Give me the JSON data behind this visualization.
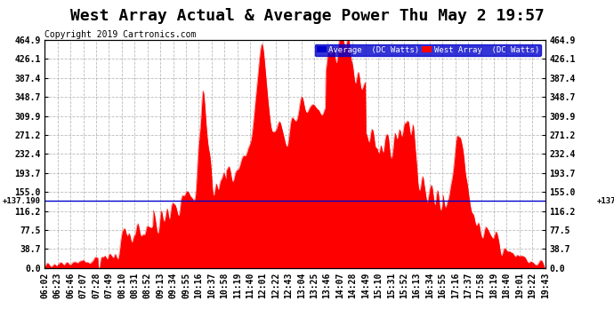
{
  "title": "West Array Actual & Average Power Thu May 2 19:57",
  "copyright": "Copyright 2019 Cartronics.com",
  "legend_avg": "Average  (DC Watts)",
  "legend_west": "West Array  (DC Watts)",
  "average_value": 137.19,
  "ymin": 0.0,
  "ymax": 464.9,
  "yticks": [
    0.0,
    38.7,
    77.5,
    116.2,
    155.0,
    193.7,
    232.4,
    271.2,
    309.9,
    348.7,
    387.4,
    426.1,
    464.9
  ],
  "plot_bg_color": "#ffffff",
  "red_color": "#ff0000",
  "avg_line_color": "#0000cc",
  "grid_color": "#aaaaaa",
  "xtick_labels": [
    "06:02",
    "06:23",
    "06:46",
    "07:07",
    "07:28",
    "07:49",
    "08:10",
    "08:31",
    "08:52",
    "09:13",
    "09:34",
    "09:55",
    "10:16",
    "10:37",
    "10:58",
    "11:19",
    "11:40",
    "12:01",
    "12:22",
    "12:43",
    "13:04",
    "13:25",
    "13:46",
    "14:07",
    "14:28",
    "14:49",
    "15:10",
    "15:31",
    "15:52",
    "16:13",
    "16:34",
    "16:55",
    "17:16",
    "17:37",
    "17:58",
    "18:19",
    "18:40",
    "19:01",
    "19:22",
    "19:43"
  ],
  "title_fontsize": 13,
  "tick_fontsize": 7,
  "copyright_fontsize": 7,
  "fig_bg": "#ffffff",
  "legend_bg": "#0000cc",
  "legend_text_color": "#ffffff"
}
